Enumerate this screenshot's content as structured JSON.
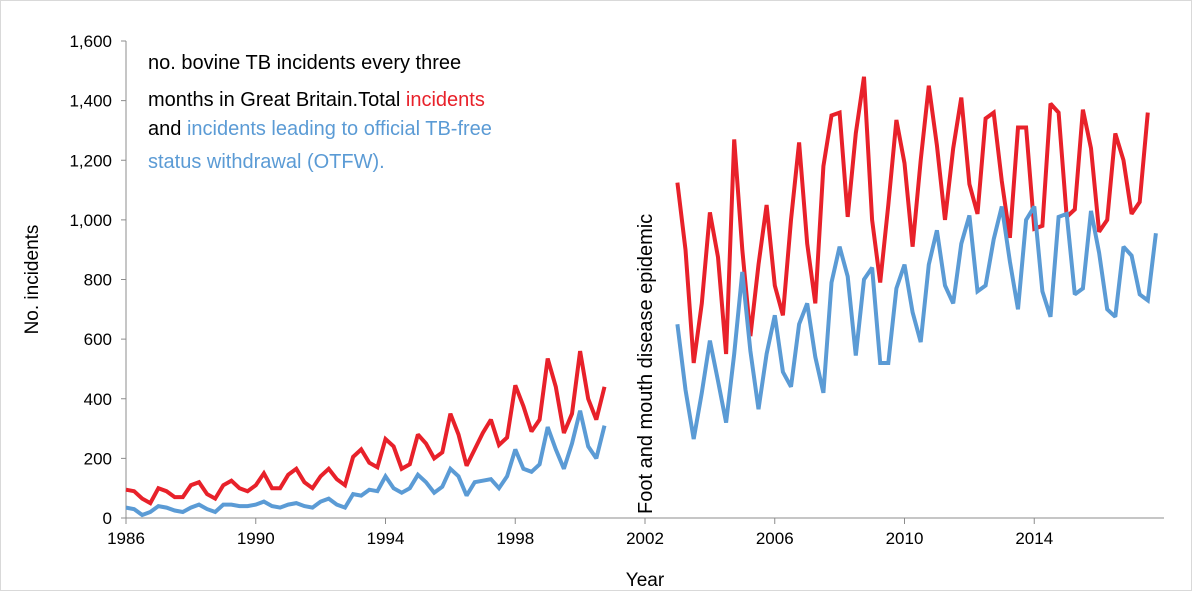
{
  "chart_data": {
    "type": "line",
    "title_parts": [
      {
        "text": "no. bovine TB incidents every three",
        "color": "#000000"
      },
      {
        "text": "months in Great Britain.Total ",
        "color": "#000000"
      },
      {
        "text": "incidents",
        "color": "#e8212a"
      },
      {
        "text": "and ",
        "color": "#000000"
      },
      {
        "text": "incidents  leading  to official TB-free",
        "color": "#5b9bd5"
      },
      {
        "text": "status withdrawal  (OTFW).",
        "color": "#5b9bd5"
      }
    ],
    "xlabel": "Year",
    "ylabel": "No. incidents",
    "xlim": [
      1986,
      2018
    ],
    "ylim": [
      0,
      1600
    ],
    "x_ticks": [
      1986,
      1990,
      1994,
      1998,
      2002,
      2006,
      2010,
      2014
    ],
    "y_ticks": [
      0,
      200,
      400,
      600,
      800,
      1000,
      1200,
      1400,
      1600
    ],
    "y_tick_labels": [
      "0",
      "200",
      "400",
      "600",
      "800",
      "1,000",
      "1,200",
      "1,400",
      "1,600"
    ],
    "annotation": "Foot and mouth disease epidemic",
    "grid": false,
    "series": [
      {
        "color": "#e8212a",
        "segments": [
          {
            "start": 1986.0,
            "step": 0.25,
            "values": [
              95,
              90,
              65,
              50,
              100,
              90,
              70,
              70,
              110,
              120,
              80,
              65,
              110,
              125,
              100,
              90,
              110,
              150,
              100,
              100,
              145,
              165,
              120,
              100,
              140,
              165,
              130,
              110,
              205,
              230,
              185,
              170,
              265,
              240,
              165,
              180,
              280,
              250,
              200,
              220,
              350,
              280,
              175,
              230,
              285,
              330,
              245,
              270,
              445,
              375,
              290,
              330,
              535,
              440,
              285,
              350,
              560,
              400,
              330,
              440
            ]
          },
          {
            "start": 2003.0,
            "step": 0.25,
            "values": [
              1125,
              900,
              520,
              720,
              1025,
              875,
              550,
              1270,
              900,
              610,
              850,
              1050,
              780,
              680,
              1000,
              1260,
              920,
              720,
              1180,
              1350,
              1360,
              1010,
              1290,
              1480,
              1000,
              790,
              1050,
              1335,
              1190,
              910,
              1200,
              1450,
              1250,
              1000,
              1240,
              1410,
              1120,
              1020,
              1340,
              1360,
              1130,
              940,
              1310,
              1310,
              970,
              980,
              1390,
              1360,
              1010,
              1035,
              1370,
              1240,
              960,
              1000,
              1290,
              1200,
              1020,
              1060,
              1360
            ]
          }
        ]
      },
      {
        "color": "#5b9bd5",
        "segments": [
          {
            "start": 1986.0,
            "step": 0.25,
            "values": [
              35,
              30,
              10,
              20,
              40,
              35,
              25,
              20,
              35,
              45,
              30,
              20,
              45,
              45,
              40,
              40,
              45,
              55,
              40,
              35,
              45,
              50,
              40,
              35,
              55,
              65,
              45,
              35,
              80,
              75,
              95,
              90,
              140,
              100,
              85,
              100,
              145,
              120,
              85,
              105,
              165,
              140,
              75,
              120,
              125,
              130,
              100,
              140,
              230,
              165,
              155,
              180,
              305,
              230,
              165,
              250,
              360,
              240,
              200,
              310
            ]
          },
          {
            "start": 2003.0,
            "step": 0.25,
            "values": [
              650,
              430,
              265,
              420,
              595,
              460,
              320,
              550,
              825,
              560,
              365,
              550,
              680,
              490,
              440,
              650,
              720,
              540,
              420,
              790,
              910,
              810,
              545,
              800,
              840,
              520,
              520,
              770,
              850,
              690,
              590,
              850,
              965,
              780,
              720,
              920,
              1015,
              760,
              780,
              935,
              1045,
              860,
              700,
              1000,
              1045,
              760,
              675,
              1010,
              1020,
              750,
              770,
              1030,
              890,
              700,
              675,
              910,
              880,
              750,
              730,
              955
            ]
          }
        ]
      }
    ]
  }
}
